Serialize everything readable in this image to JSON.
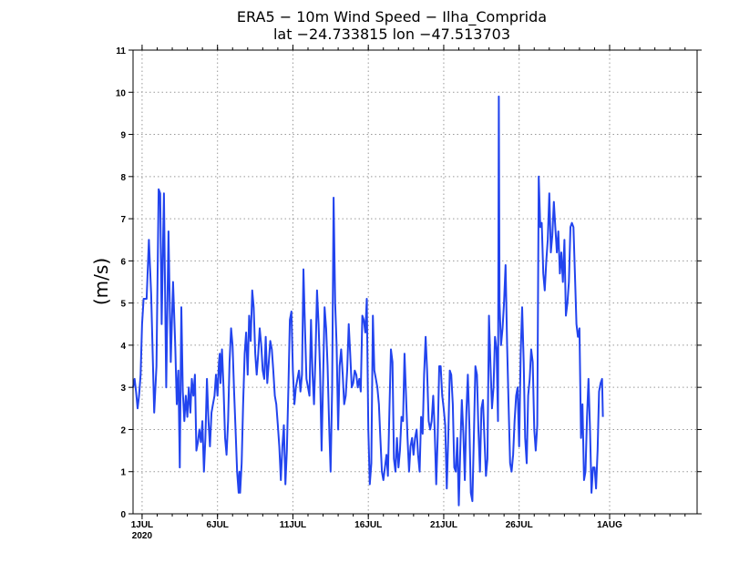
{
  "chart_data": {
    "type": "line",
    "title_line1": "ERA5 − 10m Wind Speed − Ilha_Comprida",
    "title_line2": "lat −24.733815 lon −47.513703",
    "ylabel": "(m/s)",
    "xlabel": "",
    "ylim": [
      0,
      11
    ],
    "y_ticks": [
      0,
      1,
      2,
      3,
      4,
      5,
      6,
      7,
      8,
      9,
      10,
      11
    ],
    "grid": true,
    "x_unit": "days since 1 JUL 2020",
    "xlim": [
      -0.6,
      36.8
    ],
    "x_ticks": [
      {
        "day": 0,
        "label": "1JUL",
        "sublabel": "2020"
      },
      {
        "day": 5,
        "label": "6JUL",
        "sublabel": ""
      },
      {
        "day": 10,
        "label": "11JUL",
        "sublabel": ""
      },
      {
        "day": 15,
        "label": "16JUL",
        "sublabel": ""
      },
      {
        "day": 20,
        "label": "21JUL",
        "sublabel": ""
      },
      {
        "day": 25,
        "label": "26JUL",
        "sublabel": ""
      },
      {
        "day": 31,
        "label": "1AUG",
        "sublabel": ""
      }
    ],
    "series": [
      {
        "name": "10m Wind Speed",
        "color": "#2244ee",
        "points": [
          [
            -0.6,
            3.0
          ],
          [
            -0.5,
            3.2
          ],
          [
            -0.4,
            2.9
          ],
          [
            -0.3,
            2.5
          ],
          [
            -0.2,
            2.8
          ],
          [
            -0.1,
            3.3
          ],
          [
            0.0,
            4.5
          ],
          [
            0.1,
            5.1
          ],
          [
            0.3,
            5.1
          ],
          [
            0.45,
            6.5
          ],
          [
            0.6,
            5.2
          ],
          [
            0.8,
            2.4
          ],
          [
            0.95,
            3.5
          ],
          [
            1.1,
            7.7
          ],
          [
            1.2,
            7.6
          ],
          [
            1.3,
            4.5
          ],
          [
            1.45,
            7.6
          ],
          [
            1.6,
            3.0
          ],
          [
            1.75,
            6.7
          ],
          [
            1.9,
            3.6
          ],
          [
            2.05,
            5.5
          ],
          [
            2.2,
            4.0
          ],
          [
            2.3,
            2.6
          ],
          [
            2.4,
            3.4
          ],
          [
            2.5,
            1.1
          ],
          [
            2.6,
            4.9
          ],
          [
            2.7,
            2.9
          ],
          [
            2.8,
            2.2
          ],
          [
            2.9,
            2.8
          ],
          [
            3.0,
            2.3
          ],
          [
            3.1,
            3.0
          ],
          [
            3.2,
            2.4
          ],
          [
            3.3,
            3.2
          ],
          [
            3.4,
            2.8
          ],
          [
            3.5,
            3.3
          ],
          [
            3.6,
            1.5
          ],
          [
            3.7,
            1.7
          ],
          [
            3.8,
            2.0
          ],
          [
            3.9,
            1.7
          ],
          [
            4.0,
            2.2
          ],
          [
            4.1,
            1.0
          ],
          [
            4.2,
            1.8
          ],
          [
            4.3,
            3.2
          ],
          [
            4.4,
            2.2
          ],
          [
            4.5,
            1.6
          ],
          [
            4.6,
            2.4
          ],
          [
            4.7,
            2.6
          ],
          [
            4.8,
            2.8
          ],
          [
            4.9,
            3.3
          ],
          [
            5.0,
            2.8
          ],
          [
            5.1,
            3.6
          ],
          [
            5.15,
            3.8
          ],
          [
            5.2,
            3.1
          ],
          [
            5.3,
            3.9
          ],
          [
            5.4,
            3.0
          ],
          [
            5.5,
            1.8
          ],
          [
            5.6,
            1.4
          ],
          [
            5.7,
            2.2
          ],
          [
            5.8,
            3.6
          ],
          [
            5.9,
            4.4
          ],
          [
            6.0,
            4.0
          ],
          [
            6.1,
            2.9
          ],
          [
            6.2,
            2.0
          ],
          [
            6.3,
            1.0
          ],
          [
            6.4,
            0.5
          ],
          [
            6.45,
            1.0
          ],
          [
            6.5,
            0.5
          ],
          [
            6.6,
            1.2
          ],
          [
            6.7,
            2.6
          ],
          [
            6.8,
            3.8
          ],
          [
            6.9,
            4.3
          ],
          [
            7.0,
            3.3
          ],
          [
            7.1,
            4.7
          ],
          [
            7.2,
            4.1
          ],
          [
            7.3,
            5.3
          ],
          [
            7.4,
            4.9
          ],
          [
            7.5,
            3.8
          ],
          [
            7.6,
            3.3
          ],
          [
            7.7,
            3.8
          ],
          [
            7.8,
            4.4
          ],
          [
            7.9,
            4.0
          ],
          [
            8.0,
            3.4
          ],
          [
            8.1,
            3.2
          ],
          [
            8.2,
            4.2
          ],
          [
            8.3,
            3.1
          ],
          [
            8.4,
            3.6
          ],
          [
            8.5,
            4.1
          ],
          [
            8.6,
            3.9
          ],
          [
            8.7,
            3.4
          ],
          [
            8.8,
            2.8
          ],
          [
            8.9,
            2.6
          ],
          [
            9.0,
            2.1
          ],
          [
            9.1,
            1.6
          ],
          [
            9.2,
            0.8
          ],
          [
            9.3,
            1.6
          ],
          [
            9.4,
            2.1
          ],
          [
            9.5,
            0.7
          ],
          [
            9.6,
            1.5
          ],
          [
            9.7,
            3.0
          ],
          [
            9.8,
            4.6
          ],
          [
            9.9,
            4.8
          ],
          [
            10.0,
            3.4
          ],
          [
            10.1,
            2.6
          ],
          [
            10.2,
            3.0
          ],
          [
            10.3,
            3.2
          ],
          [
            10.4,
            3.4
          ],
          [
            10.5,
            2.9
          ],
          [
            10.6,
            3.3
          ],
          [
            10.7,
            5.8
          ],
          [
            10.8,
            4.4
          ],
          [
            10.9,
            3.2
          ],
          [
            11.0,
            3.0
          ],
          [
            11.1,
            2.8
          ],
          [
            11.2,
            4.6
          ],
          [
            11.3,
            3.3
          ],
          [
            11.4,
            2.6
          ],
          [
            11.5,
            3.8
          ],
          [
            11.6,
            5.3
          ],
          [
            11.7,
            4.5
          ],
          [
            11.8,
            3.4
          ],
          [
            11.9,
            1.5
          ],
          [
            12.0,
            3.1
          ],
          [
            12.1,
            4.9
          ],
          [
            12.2,
            4.4
          ],
          [
            12.3,
            3.5
          ],
          [
            12.4,
            2.1
          ],
          [
            12.5,
            1.0
          ],
          [
            12.6,
            3.0
          ],
          [
            12.7,
            7.5
          ],
          [
            12.8,
            5.0
          ],
          [
            12.9,
            4.0
          ],
          [
            13.0,
            2.0
          ],
          [
            13.1,
            3.5
          ],
          [
            13.2,
            3.9
          ],
          [
            13.3,
            3.3
          ],
          [
            13.4,
            2.6
          ],
          [
            13.5,
            2.8
          ],
          [
            13.6,
            3.4
          ],
          [
            13.7,
            4.5
          ],
          [
            13.8,
            3.8
          ],
          [
            13.9,
            3.0
          ],
          [
            14.0,
            3.1
          ],
          [
            14.1,
            3.4
          ],
          [
            14.2,
            3.3
          ],
          [
            14.3,
            3.0
          ],
          [
            14.4,
            3.2
          ],
          [
            14.5,
            2.9
          ],
          [
            14.6,
            4.7
          ],
          [
            14.7,
            4.6
          ],
          [
            14.8,
            4.3
          ],
          [
            14.9,
            5.1
          ],
          [
            15.0,
            2.0
          ],
          [
            15.1,
            0.7
          ],
          [
            15.2,
            1.2
          ],
          [
            15.3,
            4.7
          ],
          [
            15.4,
            3.4
          ],
          [
            15.5,
            3.2
          ],
          [
            15.6,
            3.0
          ],
          [
            15.7,
            2.6
          ],
          [
            15.8,
            1.8
          ],
          [
            15.9,
            1.0
          ],
          [
            16.0,
            0.8
          ],
          [
            16.1,
            1.1
          ],
          [
            16.2,
            1.4
          ],
          [
            16.3,
            0.9
          ],
          [
            16.4,
            2.5
          ],
          [
            16.5,
            3.9
          ],
          [
            16.6,
            3.6
          ],
          [
            16.7,
            1.3
          ],
          [
            16.8,
            1.0
          ],
          [
            16.9,
            1.8
          ],
          [
            17.0,
            1.1
          ],
          [
            17.1,
            1.5
          ],
          [
            17.2,
            2.3
          ],
          [
            17.3,
            2.2
          ],
          [
            17.4,
            3.8
          ],
          [
            17.5,
            2.8
          ],
          [
            17.6,
            1.8
          ],
          [
            17.7,
            1.0
          ],
          [
            17.8,
            1.6
          ],
          [
            17.9,
            1.8
          ],
          [
            18.0,
            1.4
          ],
          [
            18.1,
            1.8
          ],
          [
            18.2,
            2.0
          ],
          [
            18.3,
            1.4
          ],
          [
            18.4,
            1.0
          ],
          [
            18.5,
            2.3
          ],
          [
            18.6,
            1.9
          ],
          [
            18.7,
            3.3
          ],
          [
            18.8,
            4.2
          ],
          [
            18.9,
            3.4
          ],
          [
            19.0,
            2.2
          ],
          [
            19.1,
            2.0
          ],
          [
            19.2,
            2.2
          ],
          [
            19.3,
            2.8
          ],
          [
            19.4,
            2.0
          ],
          [
            19.5,
            0.7
          ],
          [
            19.6,
            1.8
          ],
          [
            19.7,
            3.5
          ],
          [
            19.8,
            3.5
          ],
          [
            19.9,
            2.8
          ],
          [
            20.0,
            2.5
          ],
          [
            20.1,
            2.1
          ],
          [
            20.2,
            0.6
          ],
          [
            20.3,
            1.8
          ],
          [
            20.4,
            3.4
          ],
          [
            20.5,
            3.3
          ],
          [
            20.6,
            2.6
          ],
          [
            20.7,
            1.1
          ],
          [
            20.8,
            1.0
          ],
          [
            20.9,
            1.8
          ],
          [
            21.0,
            0.2
          ],
          [
            21.1,
            1.6
          ],
          [
            21.2,
            2.7
          ],
          [
            21.3,
            1.9
          ],
          [
            21.4,
            0.8
          ],
          [
            21.5,
            2.4
          ],
          [
            21.6,
            3.3
          ],
          [
            21.7,
            2.1
          ],
          [
            21.8,
            0.5
          ],
          [
            21.9,
            0.3
          ],
          [
            22.0,
            1.8
          ],
          [
            22.1,
            3.5
          ],
          [
            22.2,
            3.3
          ],
          [
            22.3,
            2.0
          ],
          [
            22.4,
            1.0
          ],
          [
            22.5,
            2.5
          ],
          [
            22.6,
            2.7
          ],
          [
            22.7,
            1.8
          ],
          [
            22.8,
            0.9
          ],
          [
            22.9,
            1.3
          ],
          [
            23.0,
            4.7
          ],
          [
            23.1,
            3.5
          ],
          [
            23.2,
            2.5
          ],
          [
            23.3,
            3.0
          ],
          [
            23.4,
            4.2
          ],
          [
            23.5,
            3.9
          ],
          [
            23.6,
            2.2
          ],
          [
            23.65,
            9.9
          ],
          [
            23.7,
            5.0
          ],
          [
            23.8,
            4.0
          ],
          [
            23.9,
            4.4
          ],
          [
            24.0,
            5.0
          ],
          [
            24.1,
            5.9
          ],
          [
            24.2,
            4.0
          ],
          [
            24.3,
            2.6
          ],
          [
            24.4,
            1.2
          ],
          [
            24.5,
            1.0
          ],
          [
            24.6,
            1.4
          ],
          [
            24.7,
            2.2
          ],
          [
            24.8,
            2.8
          ],
          [
            24.9,
            3.0
          ],
          [
            25.0,
            1.6
          ],
          [
            25.1,
            3.8
          ],
          [
            25.2,
            4.9
          ],
          [
            25.3,
            3.6
          ],
          [
            25.4,
            1.8
          ],
          [
            25.5,
            1.2
          ],
          [
            25.6,
            2.8
          ],
          [
            25.7,
            3.2
          ],
          [
            25.8,
            3.9
          ],
          [
            25.9,
            3.6
          ],
          [
            26.0,
            2.0
          ],
          [
            26.1,
            1.5
          ],
          [
            26.2,
            2.1
          ],
          [
            26.3,
            8.0
          ],
          [
            26.4,
            6.8
          ],
          [
            26.5,
            6.9
          ],
          [
            26.6,
            5.7
          ],
          [
            26.7,
            5.3
          ],
          [
            26.8,
            6.0
          ],
          [
            26.9,
            6.5
          ],
          [
            27.0,
            7.6
          ],
          [
            27.1,
            6.2
          ],
          [
            27.2,
            6.6
          ],
          [
            27.3,
            7.4
          ],
          [
            27.4,
            6.8
          ],
          [
            27.5,
            6.2
          ],
          [
            27.6,
            6.7
          ],
          [
            27.7,
            5.7
          ],
          [
            27.8,
            6.2
          ],
          [
            27.9,
            5.5
          ],
          [
            28.0,
            6.5
          ],
          [
            28.1,
            4.7
          ],
          [
            28.2,
            5.0
          ],
          [
            28.3,
            5.5
          ],
          [
            28.4,
            6.8
          ],
          [
            28.5,
            6.9
          ],
          [
            28.6,
            6.8
          ],
          [
            28.7,
            5.7
          ],
          [
            28.8,
            4.5
          ],
          [
            28.9,
            4.2
          ],
          [
            29.0,
            4.4
          ],
          [
            29.1,
            1.8
          ],
          [
            29.2,
            2.6
          ],
          [
            29.3,
            0.8
          ],
          [
            29.4,
            1.0
          ],
          [
            29.5,
            2.3
          ],
          [
            29.6,
            3.2
          ],
          [
            29.7,
            2.0
          ],
          [
            29.8,
            0.5
          ],
          [
            29.9,
            1.1
          ],
          [
            30.0,
            1.1
          ],
          [
            30.1,
            0.6
          ],
          [
            30.2,
            1.5
          ],
          [
            30.3,
            2.9
          ],
          [
            30.4,
            3.1
          ],
          [
            30.5,
            3.2
          ],
          [
            30.55,
            2.3
          ]
        ]
      }
    ]
  }
}
